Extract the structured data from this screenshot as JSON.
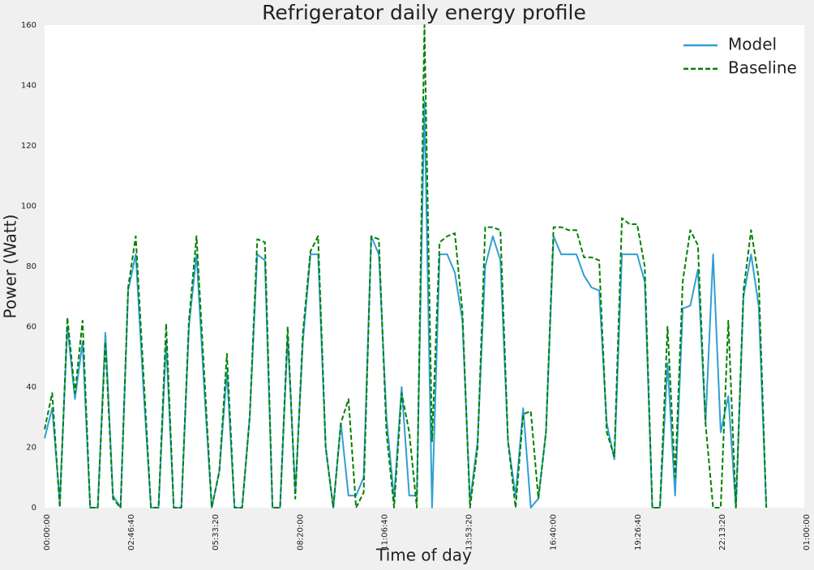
{
  "chart_data": {
    "type": "line",
    "title": "Refrigerator daily energy profile",
    "x_label": "Time of day",
    "y_label": "Power (Watt)",
    "x": [
      0,
      900,
      1800,
      2700,
      3600,
      4500,
      5400,
      6300,
      7200,
      8100,
      9000,
      9900,
      10800,
      11700,
      12600,
      13500,
      14400,
      15300,
      16200,
      17100,
      18000,
      18900,
      19800,
      20700,
      21600,
      22500,
      23400,
      24300,
      25200,
      26100,
      27000,
      27900,
      28800,
      29700,
      30600,
      31500,
      32400,
      33300,
      34200,
      35100,
      36000,
      36900,
      37800,
      38700,
      39600,
      40500,
      41400,
      42300,
      43200,
      44100,
      45000,
      45900,
      46800,
      47700,
      48600,
      49500,
      50400,
      51300,
      52200,
      53100,
      54000,
      54900,
      55800,
      56700,
      57600,
      58500,
      59400,
      60300,
      61200,
      62100,
      63000,
      63900,
      64800,
      65700,
      66600,
      67500,
      68400,
      69300,
      70200,
      71100,
      72000,
      72900,
      73800,
      74700,
      75600,
      76500,
      77400,
      78300,
      79200,
      80100,
      81000,
      81900,
      82800,
      83700,
      84600,
      85500
    ],
    "series": [
      {
        "name": "Model",
        "color": "#319fd4",
        "style": "solid",
        "values": [
          23,
          33,
          2,
          60,
          36,
          55,
          0,
          0,
          58,
          4,
          0,
          72,
          84,
          40,
          0,
          0,
          55,
          0,
          0,
          60,
          84,
          40,
          0,
          12,
          45,
          0,
          0,
          30,
          84,
          82,
          0,
          0,
          57,
          5,
          55,
          84,
          84,
          20,
          0,
          28,
          4,
          4,
          10,
          90,
          84,
          30,
          3,
          40,
          4,
          4,
          135,
          0,
          84,
          84,
          78,
          62,
          2,
          22,
          80,
          90,
          82,
          22,
          4,
          33,
          0,
          3,
          25,
          90,
          84,
          84,
          84,
          77,
          73,
          72,
          28,
          16,
          84,
          84,
          84,
          75,
          0,
          0,
          48,
          4,
          66,
          67,
          79,
          28,
          84,
          25,
          37,
          0,
          70,
          84,
          67,
          0
        ]
      },
      {
        "name": "Baseline",
        "color": "#008000",
        "style": "dashed",
        "values": [
          26,
          38,
          0,
          63,
          38,
          62,
          0,
          0,
          55,
          3,
          0,
          73,
          90,
          45,
          0,
          0,
          61,
          0,
          0,
          62,
          90,
          45,
          0,
          12,
          51,
          0,
          0,
          30,
          89,
          88,
          0,
          0,
          60,
          3,
          58,
          85,
          90,
          20,
          0,
          28,
          36,
          0,
          5,
          90,
          89,
          25,
          0,
          38,
          25,
          0,
          160,
          22,
          88,
          90,
          91,
          65,
          0,
          20,
          93,
          93,
          92,
          22,
          0,
          31,
          32,
          3,
          25,
          93,
          93,
          92,
          92,
          83,
          83,
          82,
          25,
          17,
          96,
          94,
          94,
          80,
          0,
          0,
          60,
          10,
          75,
          92,
          87,
          28,
          0,
          0,
          62,
          0,
          72,
          92,
          76,
          0
        ]
      }
    ],
    "xlim": [
      0,
      90000
    ],
    "xticks": [
      {
        "value": 0,
        "label": "00:00:00"
      },
      {
        "value": 10000,
        "label": "02:46:40"
      },
      {
        "value": 20000,
        "label": "05:33:20"
      },
      {
        "value": 30000,
        "label": "08:20:00"
      },
      {
        "value": 40000,
        "label": "11:06:40"
      },
      {
        "value": 50000,
        "label": "13:53:20"
      },
      {
        "value": 60000,
        "label": "16:40:00"
      },
      {
        "value": 70000,
        "label": "19:26:40"
      },
      {
        "value": 80000,
        "label": "22:13:20"
      },
      {
        "value": 90000,
        "label": "01:00:00"
      }
    ],
    "ylim": [
      0,
      160
    ],
    "yticks": [
      0,
      20,
      40,
      60,
      80,
      100,
      120,
      140,
      160
    ],
    "grid": false,
    "legend": "upper right"
  }
}
